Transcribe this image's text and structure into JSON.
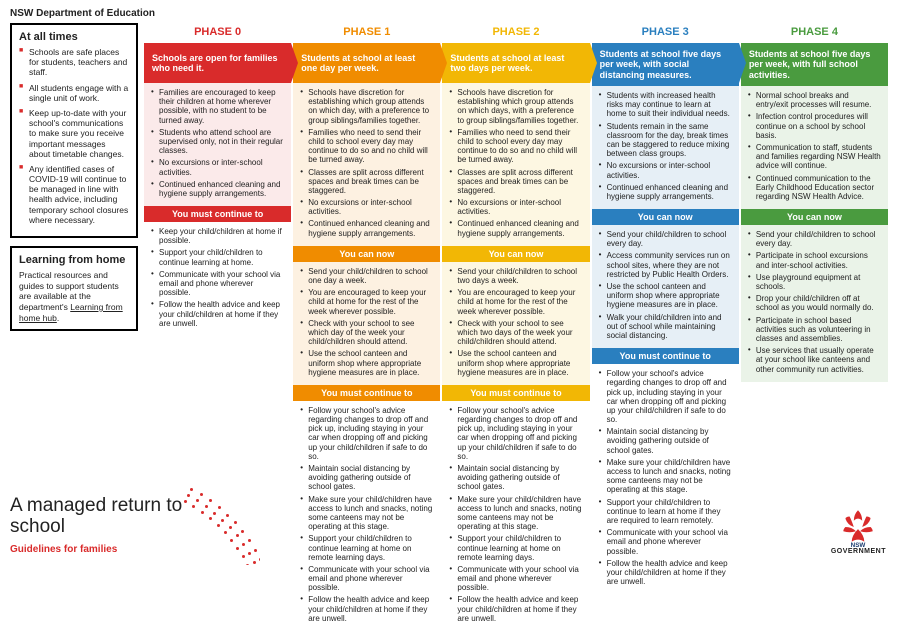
{
  "dept": "NSW Department of Education",
  "atAllTimes": {
    "title": "At all times",
    "items": [
      "Schools are safe places for students, teachers and staff.",
      "All students engage with a single unit of work.",
      "Keep up-to-date with your school's communications to make sure you receive important messages about timetable changes.",
      "Any identified cases of COVID-19 will continue to be managed in line with health advice, including temporary school closures where necessary."
    ]
  },
  "learning": {
    "title": "Learning from home",
    "text": "Practical resources and guides to support students are available at the department's ",
    "link": "Learning from home hub"
  },
  "bottom": {
    "title": "A managed return to school",
    "sub": "Guidelines for families"
  },
  "logoText": "GOVERNMENT",
  "labels": {
    "youCanNow": "You can now",
    "mustContinue": "You must continue to"
  },
  "phases": [
    {
      "name": "PHASE 0",
      "sub": "Schools are open for families who need it.",
      "top": [
        "Families are encouraged to keep their children at home wherever possible, with no student to be turned away.",
        "Students who attend school are supervised only, not in their regular classes.",
        "No excursions or inter-school activities.",
        "Continued enhanced cleaning and hygiene supply arrangements."
      ],
      "continue": [
        "Keep your child/children at home if possible.",
        "Support your child/children to continue learning at home.",
        "Communicate with your school via email and phone wherever possible.",
        "Follow the health advice and keep your child/children at home if they are unwell."
      ]
    },
    {
      "name": "PHASE 1",
      "sub": "Students at school at least one day per week.",
      "top": [
        "Schools have discretion for establishing which group attends on which day, with a preference to group siblings/families together.",
        "Families who need to send their child to school every day may continue to do so and no child will be turned away.",
        "Classes are split across different spaces and break times can be staggered.",
        "No excursions or inter-school activities.",
        "Continued enhanced cleaning and hygiene supply arrangements."
      ],
      "can": [
        "Send your child/children to school one day a week.",
        "You are encouraged to keep your child at home for the rest of the week wherever possible.",
        "Check with your school to see which day of the week your child/children should attend.",
        "Use the school canteen and uniform shop where appropriate hygiene measures are in place."
      ],
      "continue": [
        "Follow your school's advice regarding changes to drop off and pick up, including staying in your car when dropping off and picking up your child/children if safe to do so.",
        "Maintain social distancing by avoiding gathering outside of school gates.",
        "Make sure your child/children have access to lunch and snacks, noting some canteens may not be operating at this stage.",
        "Support your child/children to continue learning at home on remote learning days.",
        "Communicate with your school via email and phone wherever possible.",
        "Follow the health advice and keep your child/children at home if they are unwell."
      ]
    },
    {
      "name": "PHASE 2",
      "sub": "Students at school at least two days per week.",
      "top": [
        "Schools have discretion for establishing which group attends on which days, with a preference to group siblings/families together.",
        "Families who need to send their child to school every day may continue to do so and no child will be turned away.",
        "Classes are split across different spaces and break times can be staggered.",
        "No excursions or inter-school activities.",
        "Continued enhanced cleaning and hygiene supply arrangements."
      ],
      "can": [
        "Send your child/children to school two days a week.",
        "You are encouraged to keep your child at home for the rest of the week wherever possible.",
        "Check with your school to see which two days of the week your child/children should attend.",
        "Use the school canteen and uniform shop where appropriate hygiene measures are in place."
      ],
      "continue": [
        "Follow your school's advice regarding changes to drop off and pick up, including staying in your car when dropping off and picking up your child/children if safe to do so.",
        "Maintain social distancing by avoiding gathering outside of school gates.",
        "Make sure your child/children have access to lunch and snacks, noting some canteens may not be operating at this stage.",
        "Support your child/children to continue learning at home on remote learning days.",
        "Communicate with your school via email and phone wherever possible.",
        "Follow the health advice and keep your child/children at home if they are unwell."
      ]
    },
    {
      "name": "PHASE 3",
      "sub": "Students at school five days per week, with social distancing measures.",
      "top": [
        "Students with increased health risks may continue to learn at home to suit their individual needs.",
        "Students remain in the same classroom for the day, break times can be staggered to reduce mixing between class groups.",
        "No excursions or inter-school activities.",
        "Continued enhanced cleaning and hygiene supply arrangements."
      ],
      "can": [
        "Send your child/children to school every day.",
        "Access community services run on school sites, where they are not restricted by Public Health Orders.",
        "Use the school canteen and uniform shop where appropriate hygiene measures are in place.",
        "Walk your child/children into and out of school while maintaining social distancing."
      ],
      "continue": [
        "Follow your school's advice regarding changes to drop off and pick up, including staying in your car when dropping off and picking up your child/children if safe to do so.",
        "Maintain social distancing by avoiding gathering outside of school gates.",
        "Make sure your child/children have access to lunch and snacks, noting some canteens may not be operating at this stage.",
        "Support your child/children to continue to learn at home if they are required to learn remotely.",
        "Communicate with your school via email and phone wherever possible.",
        "Follow the health advice and keep your child/children at home if they are unwell."
      ]
    },
    {
      "name": "PHASE 4",
      "sub": "Students at school five days per week, with full school activities.",
      "top": [
        "Normal school breaks and entry/exit processes will resume.",
        "Infection control procedures will continue on a school by school basis.",
        "Communication to staff, students and families regarding NSW Health advice will continue.",
        "Continued communication to the Early Childhood Education sector regarding NSW Health Advice."
      ],
      "can": [
        "Send your child/children to school every day.",
        "Participate in school excursions and inter-school activities.",
        "Use playground equipment at schools.",
        "Drop your child/children off at school as you would normally do.",
        "Participate in school based activities such as volunteering in classes and assemblies.",
        "Use services that usually operate at your school like canteens and other community run activities."
      ]
    }
  ]
}
